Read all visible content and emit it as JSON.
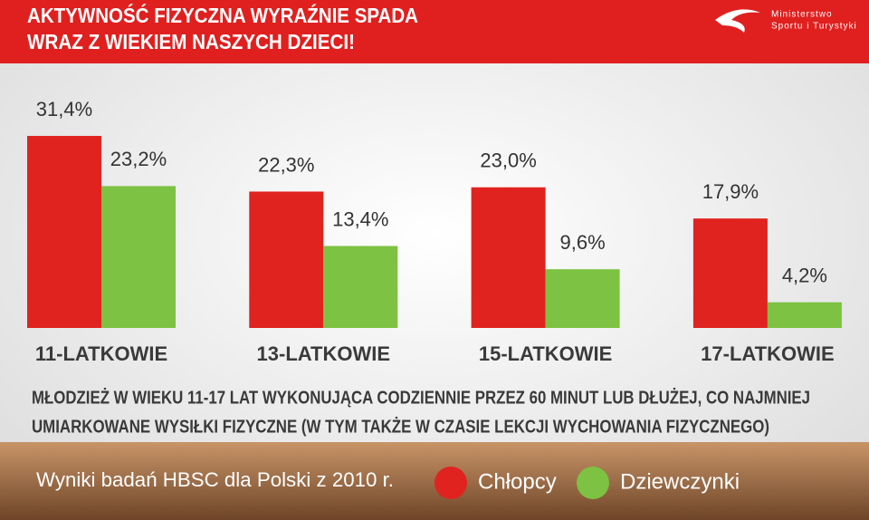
{
  "header": {
    "title": [
      "AKTYWNOŚĆ FIZYCZNA WYRAŹNIE SPADA",
      "WRAZ Z WIEKIEM NASZYCH DZIECI!"
    ],
    "logo": [
      "Ministerstwo",
      "Sportu i Turystyki"
    ]
  },
  "chart_data": {
    "type": "bar",
    "categories": [
      "11-LATKOWIE",
      "13-LATKOWIE",
      "15-LATKOWIE",
      "17-LATKOWIE"
    ],
    "series": [
      {
        "name": "Chłopcy",
        "color": "#e0231f",
        "values": [
          31.4,
          22.3,
          23.0,
          17.9
        ],
        "value_labels": [
          "31,4%",
          "22,3%",
          "23,0%",
          "17,9%"
        ]
      },
      {
        "name": "Dziewczynki",
        "color": "#7dc242",
        "values": [
          23.2,
          13.4,
          9.6,
          4.2
        ],
        "value_labels": [
          "23,2%",
          "13,4%",
          "9,6%",
          "4,2%"
        ]
      }
    ],
    "caption": [
      "MŁODZIEŻ W WIEKU 11-17 LAT WYKONUJĄCA CODZIENNIE PRZEZ 60 MINUT LUB DŁUŻEJ, CO NAJMNIEJ",
      "UMIARKOWANE WYSIŁKI FIZYCZNE (W TYM TAKŻE W CZASIE LEKCJI WYCHOWANIA FIZYCZNEGO)"
    ],
    "source": "Wyniki badań HBSC dla Polski z 2010 r."
  }
}
